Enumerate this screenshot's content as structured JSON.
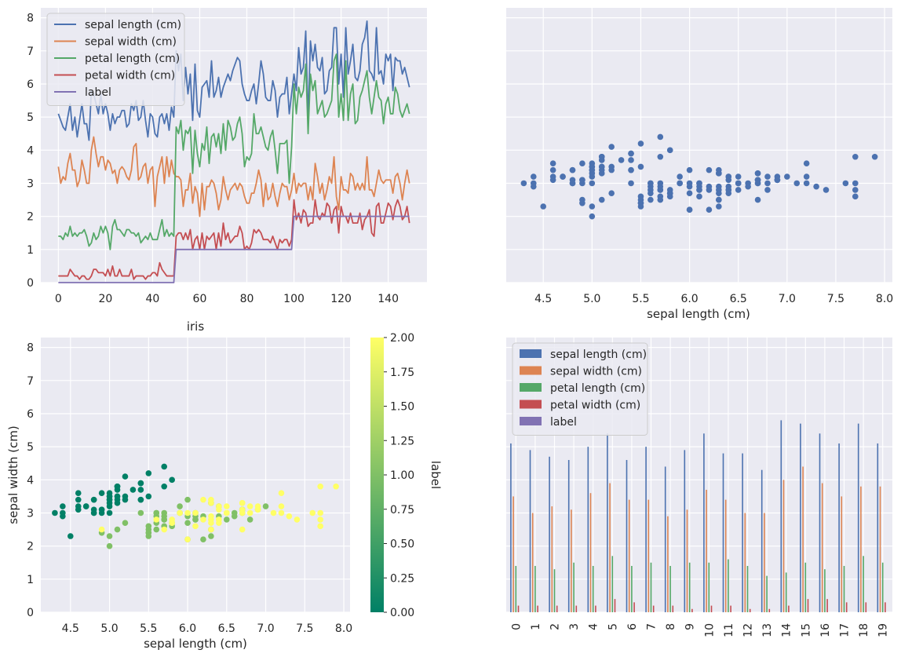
{
  "colors": {
    "panel_background": "#eaeaf2",
    "grid": "#ffffff",
    "sepal_length": "#4c72b0",
    "sepal_width": "#dd8452",
    "petal_length": "#55a868",
    "petal_width": "#c44e52",
    "label": "#8172b3",
    "colormap": [
      "#008066",
      "#80c066",
      "#ffff66"
    ]
  },
  "chart_data": [
    {
      "type": "line",
      "title": "",
      "xlabel": "",
      "ylabel": "",
      "xlim": [
        -7.45,
        156.45
      ],
      "ylim": [
        0,
        8.3
      ],
      "xticks": [
        0,
        20,
        40,
        60,
        80,
        100,
        120,
        140
      ],
      "yticks": [
        0,
        1,
        2,
        3,
        4,
        5,
        6,
        7,
        8
      ],
      "grid": true,
      "legend": "upper-left",
      "series": [
        {
          "name": "sepal length (cm)",
          "key": "sepal_length"
        },
        {
          "name": "sepal width (cm)",
          "key": "sepal_width"
        },
        {
          "name": "petal length (cm)",
          "key": "petal_length"
        },
        {
          "name": "petal width (cm)",
          "key": "petal_width"
        },
        {
          "name": "label",
          "key": "label"
        }
      ],
      "x": "row index 0-149",
      "data": {
        "sepal_length": [
          5.1,
          4.9,
          4.7,
          4.6,
          5.0,
          5.4,
          4.6,
          5.0,
          4.4,
          4.9,
          5.4,
          4.8,
          4.8,
          4.3,
          5.8,
          5.7,
          5.4,
          5.1,
          5.7,
          5.1,
          5.4,
          5.1,
          4.6,
          5.1,
          4.8,
          5.0,
          5.0,
          5.2,
          5.2,
          4.7,
          4.8,
          5.4,
          5.2,
          5.5,
          4.9,
          5.0,
          5.5,
          4.9,
          4.4,
          5.1,
          5.0,
          4.5,
          4.4,
          5.0,
          5.1,
          4.8,
          5.1,
          4.6,
          5.3,
          5.0,
          7.0,
          6.4,
          6.9,
          5.5,
          6.5,
          5.7,
          6.3,
          4.9,
          6.6,
          5.2,
          5.0,
          5.9,
          6.0,
          6.1,
          5.6,
          6.7,
          5.6,
          5.8,
          6.2,
          5.6,
          5.9,
          6.1,
          6.3,
          6.1,
          6.4,
          6.6,
          6.8,
          6.7,
          6.0,
          5.7,
          5.5,
          5.5,
          5.8,
          6.0,
          5.4,
          6.0,
          6.7,
          6.3,
          5.6,
          5.5,
          5.5,
          6.1,
          5.8,
          5.0,
          5.6,
          5.7,
          5.7,
          6.2,
          5.1,
          5.7,
          6.3,
          5.8,
          7.1,
          6.3,
          6.5,
          7.6,
          4.9,
          7.3,
          6.7,
          7.2,
          6.5,
          6.4,
          6.8,
          5.7,
          5.8,
          6.4,
          6.5,
          7.7,
          7.7,
          6.0,
          6.9,
          5.6,
          7.7,
          6.3,
          6.7,
          7.2,
          6.2,
          6.1,
          6.4,
          7.2,
          7.4,
          7.9,
          6.4,
          6.3,
          6.1,
          7.7,
          6.3,
          6.4,
          6.0,
          6.9,
          6.7,
          6.9,
          5.8,
          6.8,
          6.7,
          6.7,
          6.3,
          6.5,
          6.2,
          5.9
        ],
        "sepal_width": [
          3.5,
          3.0,
          3.2,
          3.1,
          3.6,
          3.9,
          3.4,
          3.4,
          2.9,
          3.1,
          3.7,
          3.4,
          3.0,
          3.0,
          4.0,
          4.4,
          3.9,
          3.5,
          3.8,
          3.8,
          3.4,
          3.7,
          3.6,
          3.3,
          3.4,
          3.0,
          3.4,
          3.5,
          3.4,
          3.2,
          3.1,
          3.4,
          4.1,
          4.2,
          3.1,
          3.2,
          3.5,
          3.6,
          3.0,
          3.4,
          3.5,
          2.3,
          3.2,
          3.5,
          3.8,
          3.0,
          3.8,
          3.2,
          3.7,
          3.3,
          3.2,
          3.2,
          3.1,
          2.3,
          2.8,
          2.8,
          3.3,
          2.4,
          2.9,
          2.7,
          2.0,
          3.0,
          2.2,
          2.9,
          2.9,
          3.1,
          3.0,
          2.7,
          2.2,
          2.5,
          3.2,
          2.8,
          2.5,
          2.8,
          2.9,
          3.0,
          2.8,
          3.0,
          2.9,
          2.6,
          2.4,
          2.4,
          2.7,
          2.7,
          3.0,
          3.4,
          3.1,
          2.3,
          3.0,
          2.5,
          2.6,
          3.0,
          2.6,
          2.3,
          2.7,
          3.0,
          2.9,
          2.9,
          2.5,
          2.8,
          3.3,
          2.7,
          3.0,
          2.9,
          3.0,
          3.0,
          2.5,
          2.9,
          2.5,
          3.6,
          3.2,
          2.7,
          3.0,
          2.5,
          2.8,
          3.2,
          3.0,
          3.8,
          2.6,
          2.2,
          3.2,
          2.8,
          2.8,
          2.7,
          3.3,
          3.2,
          2.8,
          3.0,
          2.8,
          3.0,
          2.8,
          3.8,
          2.8,
          2.8,
          2.6,
          3.0,
          3.4,
          3.1,
          3.0,
          3.1,
          3.1,
          3.1,
          2.7,
          3.2,
          3.3,
          3.0,
          2.5,
          3.0,
          3.4,
          3.0
        ],
        "petal_length": [
          1.4,
          1.4,
          1.3,
          1.5,
          1.4,
          1.7,
          1.4,
          1.5,
          1.4,
          1.5,
          1.5,
          1.6,
          1.4,
          1.1,
          1.2,
          1.5,
          1.3,
          1.4,
          1.7,
          1.5,
          1.7,
          1.5,
          1.0,
          1.7,
          1.9,
          1.6,
          1.6,
          1.5,
          1.4,
          1.6,
          1.6,
          1.5,
          1.5,
          1.4,
          1.5,
          1.2,
          1.3,
          1.4,
          1.3,
          1.5,
          1.3,
          1.3,
          1.3,
          1.6,
          1.9,
          1.4,
          1.6,
          1.4,
          1.5,
          1.4,
          4.7,
          4.5,
          4.9,
          4.0,
          4.6,
          4.5,
          4.7,
          3.3,
          4.6,
          3.9,
          3.5,
          4.2,
          4.0,
          4.7,
          3.6,
          4.4,
          4.5,
          4.1,
          4.5,
          3.9,
          4.8,
          4.0,
          4.9,
          4.7,
          4.3,
          4.4,
          4.8,
          5.0,
          4.5,
          3.5,
          3.8,
          3.7,
          3.9,
          5.1,
          4.5,
          4.5,
          4.7,
          4.4,
          4.1,
          4.0,
          4.4,
          4.6,
          4.0,
          3.3,
          4.2,
          4.2,
          4.2,
          4.3,
          3.0,
          4.1,
          6.0,
          5.1,
          5.9,
          5.6,
          5.8,
          6.6,
          4.5,
          6.3,
          5.8,
          6.1,
          5.1,
          5.3,
          5.5,
          5.0,
          5.1,
          5.3,
          5.5,
          6.7,
          6.9,
          5.0,
          5.7,
          4.9,
          6.7,
          4.9,
          5.7,
          6.0,
          4.8,
          4.9,
          5.6,
          5.8,
          6.1,
          6.4,
          5.6,
          5.1,
          5.6,
          6.1,
          5.6,
          5.5,
          4.8,
          5.4,
          5.6,
          5.1,
          5.1,
          5.9,
          5.7,
          5.2,
          5.0,
          5.2,
          5.4,
          5.1
        ],
        "petal_width": [
          0.2,
          0.2,
          0.2,
          0.2,
          0.2,
          0.4,
          0.3,
          0.2,
          0.2,
          0.1,
          0.2,
          0.2,
          0.1,
          0.1,
          0.2,
          0.4,
          0.4,
          0.3,
          0.3,
          0.3,
          0.2,
          0.4,
          0.2,
          0.5,
          0.2,
          0.2,
          0.4,
          0.2,
          0.2,
          0.2,
          0.2,
          0.4,
          0.1,
          0.2,
          0.2,
          0.2,
          0.2,
          0.1,
          0.2,
          0.2,
          0.3,
          0.3,
          0.2,
          0.6,
          0.4,
          0.3,
          0.2,
          0.2,
          0.2,
          0.2,
          1.4,
          1.5,
          1.5,
          1.3,
          1.5,
          1.3,
          1.6,
          1.0,
          1.3,
          1.4,
          1.0,
          1.5,
          1.0,
          1.4,
          1.3,
          1.4,
          1.5,
          1.0,
          1.5,
          1.1,
          1.8,
          1.3,
          1.5,
          1.2,
          1.3,
          1.4,
          1.4,
          1.7,
          1.5,
          1.0,
          1.1,
          1.0,
          1.2,
          1.6,
          1.5,
          1.6,
          1.5,
          1.3,
          1.3,
          1.3,
          1.2,
          1.4,
          1.2,
          1.0,
          1.3,
          1.2,
          1.3,
          1.3,
          1.1,
          1.3,
          2.5,
          1.9,
          2.1,
          1.8,
          2.2,
          2.1,
          1.7,
          1.8,
          1.8,
          2.5,
          2.0,
          1.9,
          2.1,
          2.0,
          2.4,
          2.3,
          1.8,
          2.2,
          2.3,
          1.5,
          2.3,
          2.0,
          2.0,
          1.8,
          2.1,
          1.8,
          1.8,
          1.8,
          2.1,
          1.6,
          1.9,
          2.0,
          2.2,
          1.5,
          1.4,
          2.3,
          2.4,
          1.8,
          1.8,
          2.1,
          2.4,
          2.3,
          1.9,
          2.3,
          2.5,
          2.3,
          1.9,
          2.0,
          2.3,
          1.8
        ],
        "label": "0 for rows 0-49, 1 for rows 50-99, 2 for rows 100-149"
      }
    },
    {
      "type": "scatter",
      "title": "",
      "xlabel": "sepal length (cm)",
      "ylabel": "",
      "x_source": "sepal length (cm)",
      "y_source": "sepal width (cm)",
      "xlim": [
        4.12,
        8.08
      ],
      "ylim": [
        0,
        8.3
      ],
      "xticks": [
        4.5,
        5.0,
        5.5,
        6.0,
        6.5,
        7.0,
        7.5,
        8.0
      ],
      "grid": true,
      "color": "#4c72b0"
    },
    {
      "type": "scatter",
      "title": "iris",
      "xlabel": "sepal length (cm)",
      "ylabel": "sepal width (cm)",
      "x_source": "sepal length (cm)",
      "y_source": "sepal width (cm)",
      "color_source": "label",
      "xlim": [
        4.12,
        8.08
      ],
      "ylim": [
        0,
        8.3
      ],
      "xticks": [
        4.5,
        5.0,
        5.5,
        6.0,
        6.5,
        7.0,
        7.5,
        8.0
      ],
      "yticks": [
        0,
        1,
        2,
        3,
        4,
        5,
        6,
        7,
        8
      ],
      "grid": true,
      "colorbar": {
        "label": "label",
        "range": [
          0,
          2
        ],
        "ticks": [
          "0.00",
          "0.25",
          "0.50",
          "0.75",
          "1.00",
          "1.25",
          "1.50",
          "1.75",
          "2.00"
        ]
      }
    },
    {
      "type": "bar",
      "title": "",
      "xlabel": "",
      "ylabel": "",
      "categories": [
        "0",
        "1",
        "2",
        "3",
        "4",
        "5",
        "6",
        "7",
        "8",
        "9",
        "10",
        "11",
        "12",
        "13",
        "14",
        "15",
        "16",
        "17",
        "18",
        "19"
      ],
      "rows": "first 20 rows of the iris table",
      "ylim": [
        0,
        8.3
      ],
      "grid": true,
      "legend": "upper-left",
      "series": [
        {
          "name": "sepal length (cm)",
          "key": "sepal_length"
        },
        {
          "name": "sepal width (cm)",
          "key": "sepal_width"
        },
        {
          "name": "petal length (cm)",
          "key": "petal_length"
        },
        {
          "name": "petal width (cm)",
          "key": "petal_width"
        },
        {
          "name": "label",
          "key": "label"
        }
      ]
    }
  ]
}
